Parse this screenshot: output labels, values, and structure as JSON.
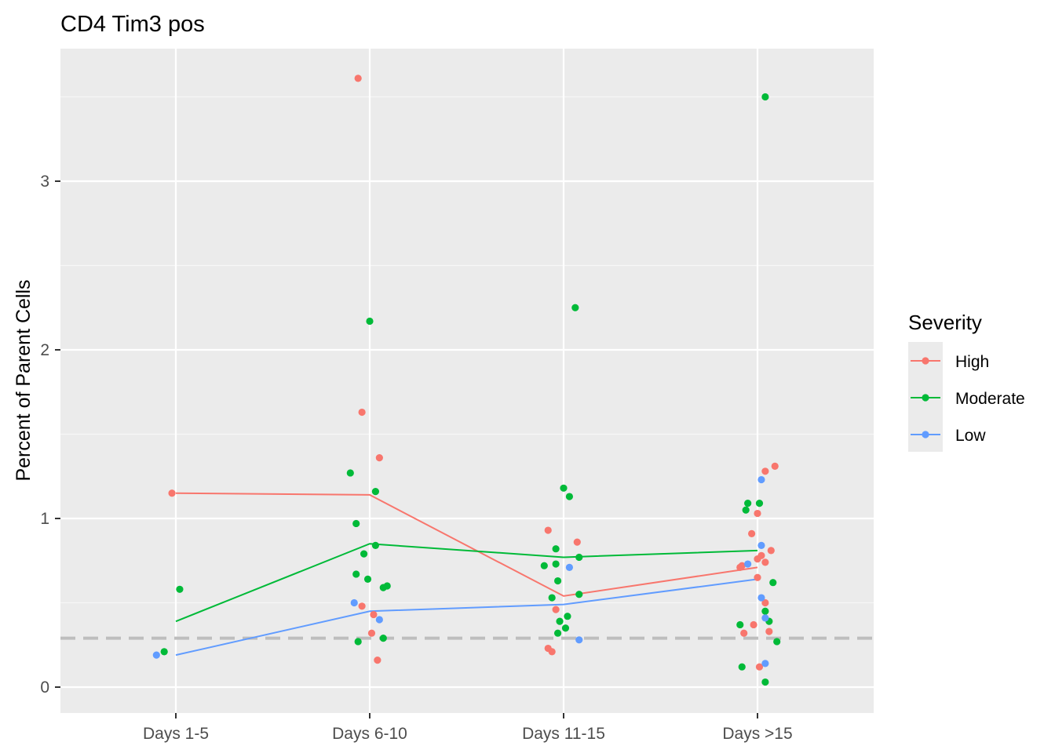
{
  "chart_data": {
    "type": "scatter",
    "title": "CD4 Tim3 pos",
    "xlabel": "",
    "ylabel": "Percent of Parent Cells",
    "categories": [
      "Days 1-5",
      "Days 6-10",
      "Days 11-15",
      "Days >15"
    ],
    "ylim": [
      -0.15,
      3.8
    ],
    "yticks": [
      0,
      1,
      2,
      3
    ],
    "grid": true,
    "reference_line": {
      "y": 0.29,
      "style": "dashed",
      "color": "#bebebe"
    },
    "legend": {
      "title": "Severity",
      "position": "right"
    },
    "series": [
      {
        "name": "High",
        "color": "#F8766D",
        "mean_line": [
          1.15,
          1.14,
          0.54,
          0.71
        ],
        "points": [
          {
            "x": "Days 1-5",
            "dx": -0.02,
            "y": 1.15
          },
          {
            "x": "Days 6-10",
            "dx": -0.06,
            "y": 3.61
          },
          {
            "x": "Days 6-10",
            "dx": -0.04,
            "y": 1.63
          },
          {
            "x": "Days 6-10",
            "dx": 0.05,
            "y": 1.36
          },
          {
            "x": "Days 6-10",
            "dx": -0.04,
            "y": 0.48
          },
          {
            "x": "Days 6-10",
            "dx": 0.02,
            "y": 0.43
          },
          {
            "x": "Days 6-10",
            "dx": 0.01,
            "y": 0.32
          },
          {
            "x": "Days 6-10",
            "dx": 0.04,
            "y": 0.16
          },
          {
            "x": "Days 11-15",
            "dx": -0.08,
            "y": 0.93
          },
          {
            "x": "Days 11-15",
            "dx": 0.07,
            "y": 0.86
          },
          {
            "x": "Days 11-15",
            "dx": -0.04,
            "y": 0.46
          },
          {
            "x": "Days 11-15",
            "dx": -0.08,
            "y": 0.23
          },
          {
            "x": "Days 11-15",
            "dx": -0.06,
            "y": 0.21
          },
          {
            "x": "Days >15",
            "dx": 0.04,
            "y": 1.28
          },
          {
            "x": "Days >15",
            "dx": 0.09,
            "y": 1.31
          },
          {
            "x": "Days >15",
            "dx": 0.0,
            "y": 1.03
          },
          {
            "x": "Days >15",
            "dx": -0.03,
            "y": 0.91
          },
          {
            "x": "Days >15",
            "dx": 0.07,
            "y": 0.81
          },
          {
            "x": "Days >15",
            "dx": 0.02,
            "y": 0.78
          },
          {
            "x": "Days >15",
            "dx": 0.0,
            "y": 0.76
          },
          {
            "x": "Days >15",
            "dx": 0.04,
            "y": 0.74
          },
          {
            "x": "Days >15",
            "dx": -0.09,
            "y": 0.71
          },
          {
            "x": "Days >15",
            "dx": -0.08,
            "y": 0.72
          },
          {
            "x": "Days >15",
            "dx": 0.0,
            "y": 0.65
          },
          {
            "x": "Days >15",
            "dx": 0.04,
            "y": 0.5
          },
          {
            "x": "Days >15",
            "dx": -0.02,
            "y": 0.37
          },
          {
            "x": "Days >15",
            "dx": -0.07,
            "y": 0.32
          },
          {
            "x": "Days >15",
            "dx": 0.06,
            "y": 0.33
          },
          {
            "x": "Days >15",
            "dx": 0.01,
            "y": 0.12
          }
        ]
      },
      {
        "name": "Moderate",
        "color": "#00BA38",
        "mean_line": [
          0.39,
          0.85,
          0.77,
          0.81
        ],
        "points": [
          {
            "x": "Days 1-5",
            "dx": 0.02,
            "y": 0.58
          },
          {
            "x": "Days 1-5",
            "dx": -0.06,
            "y": 0.21
          },
          {
            "x": "Days 6-10",
            "dx": 0.0,
            "y": 2.17
          },
          {
            "x": "Days 6-10",
            "dx": -0.1,
            "y": 1.27
          },
          {
            "x": "Days 6-10",
            "dx": 0.03,
            "y": 1.16
          },
          {
            "x": "Days 6-10",
            "dx": -0.07,
            "y": 0.97
          },
          {
            "x": "Days 6-10",
            "dx": 0.03,
            "y": 0.84
          },
          {
            "x": "Days 6-10",
            "dx": -0.03,
            "y": 0.79
          },
          {
            "x": "Days 6-10",
            "dx": -0.07,
            "y": 0.67
          },
          {
            "x": "Days 6-10",
            "dx": -0.01,
            "y": 0.64
          },
          {
            "x": "Days 6-10",
            "dx": 0.07,
            "y": 0.59
          },
          {
            "x": "Days 6-10",
            "dx": 0.09,
            "y": 0.6
          },
          {
            "x": "Days 6-10",
            "dx": 0.07,
            "y": 0.29
          },
          {
            "x": "Days 6-10",
            "dx": -0.06,
            "y": 0.27
          },
          {
            "x": "Days 11-15",
            "dx": 0.06,
            "y": 2.25
          },
          {
            "x": "Days 11-15",
            "dx": 0.0,
            "y": 1.18
          },
          {
            "x": "Days 11-15",
            "dx": 0.03,
            "y": 1.13
          },
          {
            "x": "Days 11-15",
            "dx": -0.04,
            "y": 0.82
          },
          {
            "x": "Days 11-15",
            "dx": 0.08,
            "y": 0.77
          },
          {
            "x": "Days 11-15",
            "dx": -0.04,
            "y": 0.73
          },
          {
            "x": "Days 11-15",
            "dx": -0.1,
            "y": 0.72
          },
          {
            "x": "Days 11-15",
            "dx": -0.03,
            "y": 0.63
          },
          {
            "x": "Days 11-15",
            "dx": 0.08,
            "y": 0.55
          },
          {
            "x": "Days 11-15",
            "dx": -0.06,
            "y": 0.53
          },
          {
            "x": "Days 11-15",
            "dx": 0.02,
            "y": 0.42
          },
          {
            "x": "Days 11-15",
            "dx": -0.02,
            "y": 0.39
          },
          {
            "x": "Days 11-15",
            "dx": 0.01,
            "y": 0.35
          },
          {
            "x": "Days 11-15",
            "dx": -0.03,
            "y": 0.32
          },
          {
            "x": "Days >15",
            "dx": 0.04,
            "y": 3.5
          },
          {
            "x": "Days >15",
            "dx": -0.05,
            "y": 1.09
          },
          {
            "x": "Days >15",
            "dx": 0.01,
            "y": 1.09
          },
          {
            "x": "Days >15",
            "dx": -0.06,
            "y": 1.05
          },
          {
            "x": "Days >15",
            "dx": 0.08,
            "y": 0.62
          },
          {
            "x": "Days >15",
            "dx": 0.04,
            "y": 0.45
          },
          {
            "x": "Days >15",
            "dx": 0.06,
            "y": 0.39
          },
          {
            "x": "Days >15",
            "dx": -0.09,
            "y": 0.37
          },
          {
            "x": "Days >15",
            "dx": 0.1,
            "y": 0.27
          },
          {
            "x": "Days >15",
            "dx": -0.08,
            "y": 0.12
          },
          {
            "x": "Days >15",
            "dx": 0.04,
            "y": 0.03
          }
        ]
      },
      {
        "name": "Low",
        "color": "#619CFF",
        "mean_line": [
          0.19,
          0.45,
          0.49,
          0.64
        ],
        "points": [
          {
            "x": "Days 1-5",
            "dx": -0.1,
            "y": 0.19
          },
          {
            "x": "Days 6-10",
            "dx": -0.08,
            "y": 0.5
          },
          {
            "x": "Days 6-10",
            "dx": 0.05,
            "y": 0.4
          },
          {
            "x": "Days 11-15",
            "dx": 0.03,
            "y": 0.71
          },
          {
            "x": "Days 11-15",
            "dx": 0.08,
            "y": 0.28
          },
          {
            "x": "Days >15",
            "dx": 0.02,
            "y": 1.23
          },
          {
            "x": "Days >15",
            "dx": 0.02,
            "y": 0.84
          },
          {
            "x": "Days >15",
            "dx": -0.05,
            "y": 0.73
          },
          {
            "x": "Days >15",
            "dx": 0.02,
            "y": 0.53
          },
          {
            "x": "Days >15",
            "dx": 0.04,
            "y": 0.41
          },
          {
            "x": "Days >15",
            "dx": 0.04,
            "y": 0.14
          }
        ]
      }
    ]
  }
}
